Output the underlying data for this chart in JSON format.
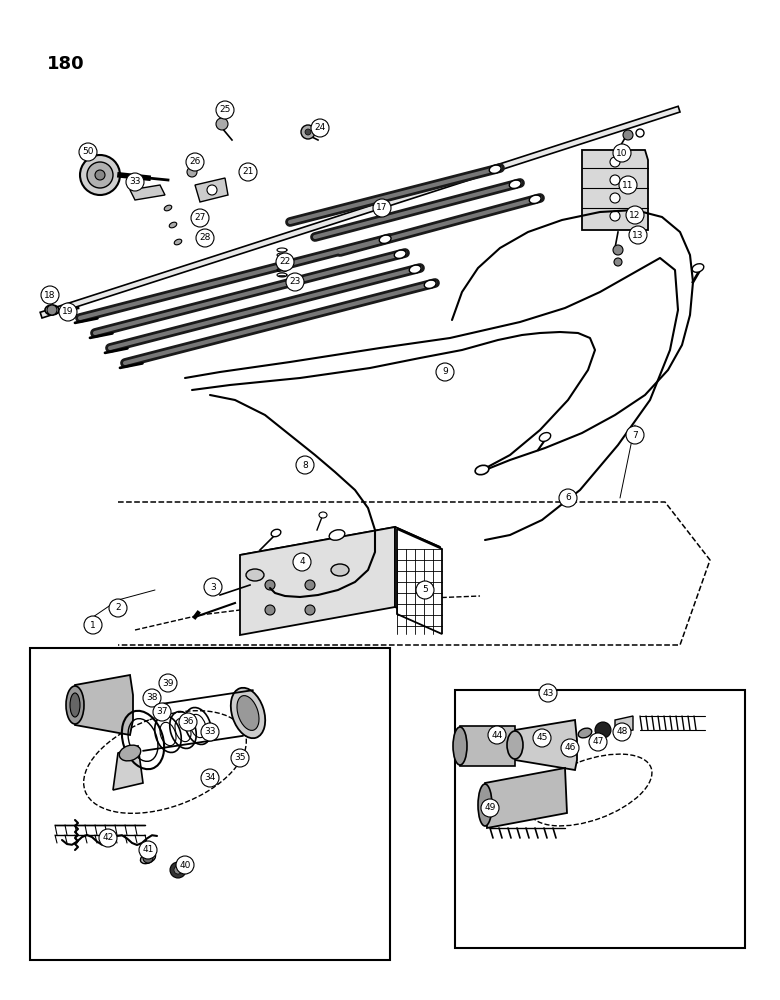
{
  "page_number": "180",
  "bg_color": "#ffffff",
  "line_color": "#000000",
  "figsize": [
    7.8,
    10.0
  ],
  "dpi": 100,
  "xlim": [
    0,
    780
  ],
  "ylim": [
    1000,
    0
  ]
}
